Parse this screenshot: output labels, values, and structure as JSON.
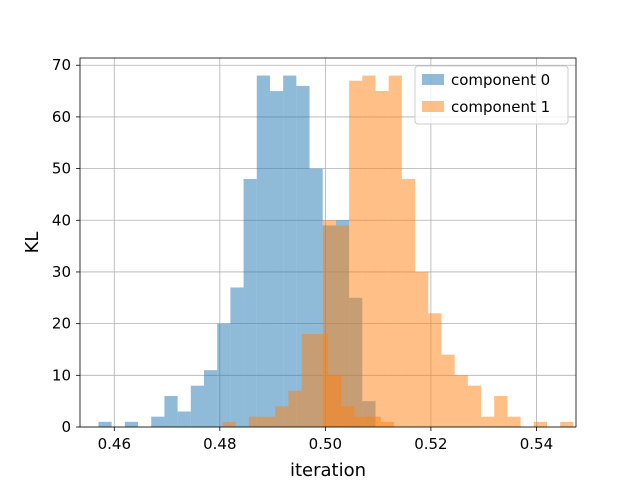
{
  "chart_data": {
    "type": "bar",
    "subtype": "overlapping-histogram",
    "xlabel": "iteration",
    "ylabel": "KL",
    "xlim": [
      0.4535,
      0.5475
    ],
    "ylim": [
      0,
      71.4
    ],
    "xticks": [
      0.46,
      0.48,
      0.5,
      0.52,
      0.54
    ],
    "xtick_labels": [
      "0.46",
      "0.48",
      "0.50",
      "0.52",
      "0.54"
    ],
    "yticks": [
      0,
      10,
      20,
      30,
      40,
      50,
      60,
      70
    ],
    "ytick_labels": [
      "0",
      "10",
      "20",
      "30",
      "40",
      "50",
      "60",
      "70"
    ],
    "grid": true,
    "legend_position": "top-right",
    "series": [
      {
        "name": "component 0",
        "color": "#1f77b4",
        "alpha": 0.5,
        "bin_start": 0.457,
        "bin_width": 0.0025,
        "values": [
          1,
          0,
          1,
          0,
          2,
          6,
          3,
          8,
          11,
          20,
          27,
          48,
          68,
          65,
          68,
          66,
          50,
          39,
          40,
          25,
          5
        ]
      },
      {
        "name": "component 1",
        "color": "#ff7f0e",
        "alpha": 0.5,
        "bin_start": 0.4805,
        "bin_width": 0.0025,
        "values": [
          1,
          0,
          2,
          2,
          4,
          7,
          18,
          18,
          10,
          4,
          2,
          2,
          1,
          0,
          0,
          0,
          0,
          0,
          0,
          0,
          0
        ]
      },
      {
        "name": "component 1",
        "color": "#ff7f0e",
        "alpha": 0.5,
        "bin_start": 0.4995,
        "bin_width": 0.0025,
        "values": [
          40,
          39,
          67,
          68,
          65,
          68,
          48,
          30,
          22,
          14,
          10,
          8,
          2,
          6,
          2,
          0,
          1,
          0,
          1
        ]
      }
    ]
  }
}
